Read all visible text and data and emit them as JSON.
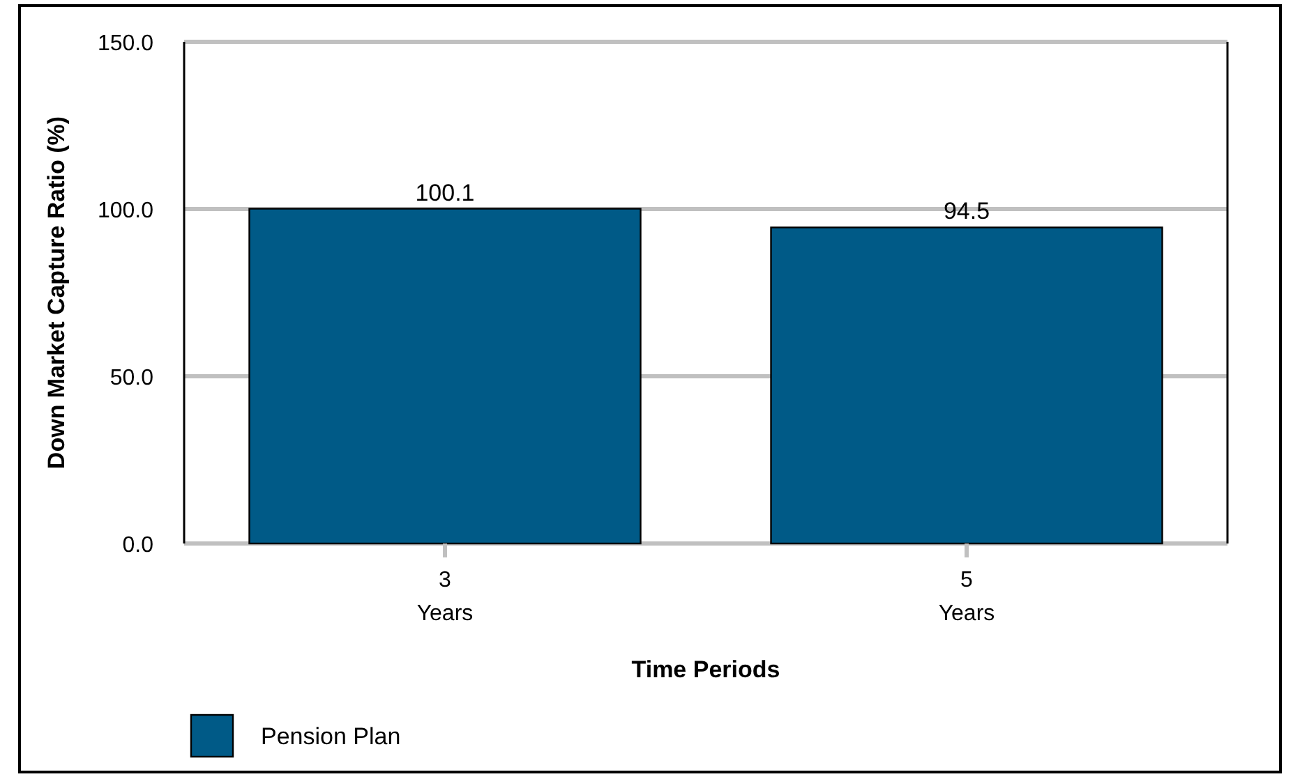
{
  "chart_data": {
    "type": "bar",
    "xlabel": "Time Periods",
    "ylabel": "Down Market Capture Ratio (%)",
    "categories": [
      "3\nYears",
      "5\nYears"
    ],
    "series": [
      {
        "name": "Pension Plan",
        "color": "#005a87",
        "values": [
          100.1,
          94.5
        ]
      }
    ],
    "ylim": [
      0,
      150
    ],
    "yticks": [
      {
        "value": 0,
        "label": "0.0"
      },
      {
        "value": 50,
        "label": "50.0"
      },
      {
        "value": 100,
        "label": "100.0"
      },
      {
        "value": 150,
        "label": "150.0"
      }
    ],
    "grid": "y",
    "legend": "bottom left",
    "data_labels": true
  }
}
